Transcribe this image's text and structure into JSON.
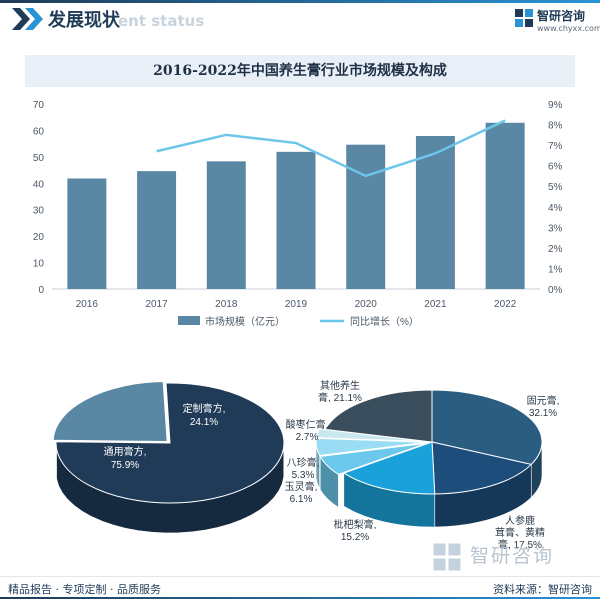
{
  "header": {
    "title": "发展现状",
    "watermark": "ent status",
    "logo_name": "智研咨询",
    "logo_url": "www.chyxx.com"
  },
  "colors": {
    "bar": "#5a88a4",
    "line": "#6cc6ea",
    "brand": "#1f3b57",
    "accent": "#2a93d5"
  },
  "chart_data": [
    {
      "type": "bar",
      "title": "2016-2022年中国养生膏行业市场规模及构成",
      "categories": [
        "2016",
        "2017",
        "2018",
        "2019",
        "2020",
        "2021",
        "2022"
      ],
      "series": [
        {
          "name": "市场规模（亿元）",
          "type": "bar",
          "axis": "left",
          "values": [
            41.8,
            44.6,
            48.3,
            51.9,
            54.6,
            57.9,
            62.9
          ]
        },
        {
          "name": "同比增长（%）",
          "type": "line",
          "axis": "right",
          "values": [
            null,
            6.7,
            7.5,
            7.1,
            5.5,
            6.6,
            8.2
          ]
        }
      ],
      "ylim_left": [
        0,
        70
      ],
      "yticks_left": [
        "0",
        "10",
        "20",
        "30",
        "40",
        "50",
        "60",
        "70"
      ],
      "ylim_right": [
        0,
        9
      ],
      "yticks_right": [
        "0%",
        "1%",
        "2%",
        "3%",
        "4%",
        "5%",
        "6%",
        "7%",
        "8%",
        "9%"
      ],
      "legend_position": "bottom"
    },
    {
      "type": "pie",
      "slices": [
        {
          "label": "通用膏方",
          "value": 75.9,
          "value_label": "75.9%"
        },
        {
          "label": "定制膏方",
          "value": 24.1,
          "value_label": "24.1%"
        }
      ],
      "colors": [
        "#1f3b57",
        "#5a88a4"
      ]
    },
    {
      "type": "pie",
      "slices": [
        {
          "label": "固元膏",
          "value": 32.1,
          "value_label": "32.1%"
        },
        {
          "label": "人参鹿茸膏、黄精膏",
          "value": 17.5,
          "value_label": "17.5%"
        },
        {
          "label": "枇杷梨膏",
          "value": 15.2,
          "value_label": "15.2%"
        },
        {
          "label": "玉灵膏",
          "value": 6.1,
          "value_label": "6.1%"
        },
        {
          "label": "八珍膏",
          "value": 5.3,
          "value_label": "5.3%"
        },
        {
          "label": "酸枣仁膏",
          "value": 2.7,
          "value_label": "2.7%"
        },
        {
          "label": "其他养生膏",
          "value": 21.1,
          "value_label": "21.1%"
        }
      ],
      "colors": [
        "#2b5d80",
        "#1d4d7a",
        "#1aa1d9",
        "#6bc8ec",
        "#9adcf3",
        "#c6e8ee",
        "#3a4d5c"
      ]
    }
  ],
  "pie_labels": {
    "custom": "定制膏方,\n24.1%",
    "general": "通用膏方,\n75.9%",
    "guyuan": "固元膏,\n32.1%",
    "renshen": "人参鹿\n茸膏、黄精\n膏, 17.5%",
    "pipa": "枇杷梨膏,\n15.2%",
    "yuling": "玉灵膏,\n6.1%",
    "bazhen": "八珍膏,\n5.3%",
    "suanzao": "酸枣仁膏,\n2.7%",
    "other": "其他养生\n膏, 21.1%"
  },
  "watermark_mark": "智研咨询",
  "footer": {
    "left": "精品报告 · 专项定制 · 品质服务",
    "right": "资料来源：智研咨询"
  }
}
